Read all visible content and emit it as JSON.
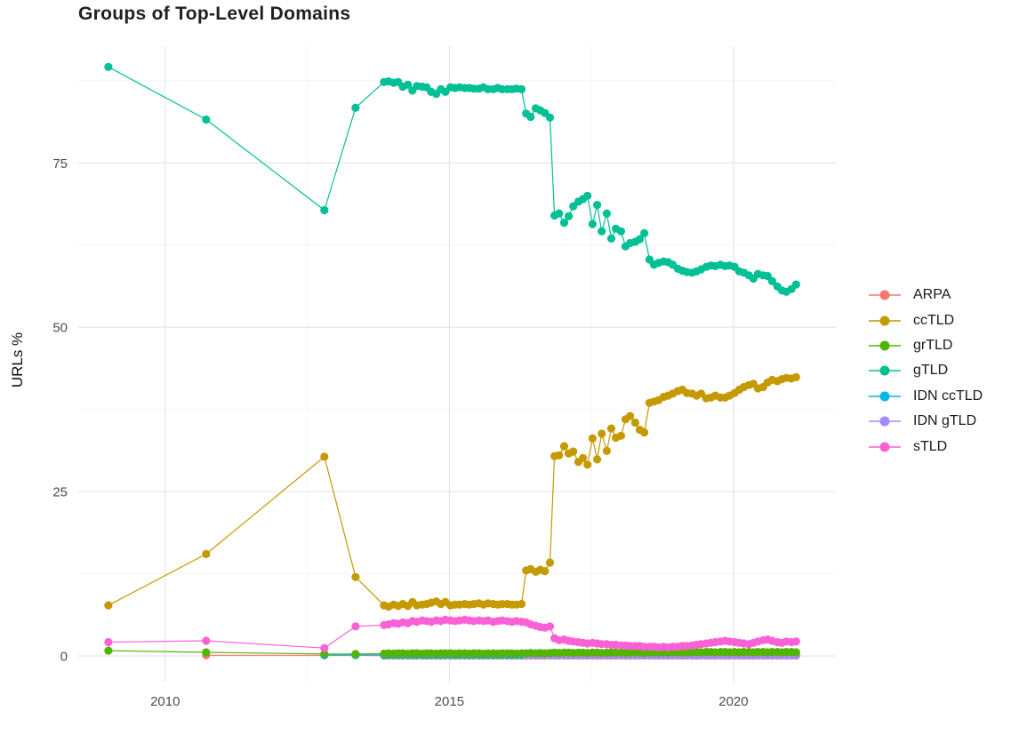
{
  "chart": {
    "title": "Groups of Top-Level Domains",
    "y_axis_title": "URLs %"
  },
  "chart_data": {
    "type": "line",
    "title": "Groups of Top-Level Domains",
    "xlabel": "",
    "ylabel": "URLs %",
    "legend_position": "right",
    "grid": true,
    "background": "#ffffff",
    "grid_major_color": "#e3e3e3",
    "grid_minor_color": "#efefef",
    "axis_text_color": "#4d4d4d",
    "xlim": [
      2008.47,
      2021.8
    ],
    "ylim": [
      -4.05,
      92.75
    ],
    "x_ticks": [
      2010,
      2015,
      2020
    ],
    "x_tick_labels": [
      "2010",
      "2015",
      "2020"
    ],
    "x_minor_ticks": [
      2012.5,
      2017.5
    ],
    "y_ticks": [
      0,
      25,
      50,
      75
    ],
    "y_tick_labels": [
      "0",
      "25",
      "50",
      "75"
    ],
    "y_minor_ticks": [
      12.5,
      37.5,
      62.5,
      87.5
    ],
    "x": [
      2009.0,
      2010.72,
      2012.8,
      2013.35,
      2013.85,
      2013.93,
      2014.02,
      2014.1,
      2014.18,
      2014.27,
      2014.35,
      2014.43,
      2014.52,
      2014.6,
      2014.68,
      2014.77,
      2014.85,
      2014.93,
      2015.02,
      2015.1,
      2015.18,
      2015.27,
      2015.35,
      2015.43,
      2015.52,
      2015.6,
      2015.68,
      2015.77,
      2015.85,
      2015.93,
      2016.02,
      2016.1,
      2016.18,
      2016.27,
      2016.35,
      2016.43,
      2016.52,
      2016.6,
      2016.68,
      2016.77,
      2016.85,
      2016.93,
      2017.02,
      2017.1,
      2017.18,
      2017.27,
      2017.35,
      2017.43,
      2017.52,
      2017.6,
      2017.68,
      2017.77,
      2017.85,
      2017.93,
      2018.02,
      2018.1,
      2018.18,
      2018.27,
      2018.35,
      2018.43,
      2018.52,
      2018.6,
      2018.68,
      2018.77,
      2018.85,
      2018.93,
      2019.02,
      2019.1,
      2019.18,
      2019.27,
      2019.35,
      2019.43,
      2019.52,
      2019.6,
      2019.68,
      2019.77,
      2019.85,
      2019.93,
      2020.02,
      2020.1,
      2020.18,
      2020.27,
      2020.35,
      2020.43,
      2020.52,
      2020.6,
      2020.68,
      2020.77,
      2020.85,
      2020.93,
      2021.02,
      2021.1
    ],
    "series": [
      {
        "name": "ARPA",
        "color": "#F8766D",
        "values": [
          null,
          0.1,
          0.1,
          0.1,
          0.05,
          0.05,
          0.05,
          0.05,
          0.05,
          0.05,
          0.05,
          0.05,
          0.05,
          0.05,
          0.05,
          0.05,
          0.05,
          0.05,
          0.05,
          0.05,
          0.05,
          0.05,
          0.05,
          0.05,
          0.05,
          0.05,
          0.05,
          0.05,
          0.05,
          0.05,
          0.05,
          0.05,
          0.05,
          0.05,
          0.05,
          0.05,
          0.05,
          0.05,
          0.05,
          0.05,
          0.05,
          0.05,
          0.05,
          0.05,
          0.05,
          0.05,
          0.05,
          0.05,
          0.05,
          0.05,
          0.05,
          0.05,
          0.05,
          0.05,
          0.05,
          0.05,
          0.05,
          0.05,
          0.05,
          0.05,
          0.05,
          0.05,
          0.05,
          0.05,
          0.05,
          0.05,
          0.05,
          0.05,
          0.05,
          0.05,
          0.05,
          0.05,
          0.05,
          0.05,
          0.05,
          0.05,
          0.05,
          0.05,
          0.05,
          0.05,
          0.05,
          0.05,
          0.05,
          0.05,
          0.05,
          0.05,
          0.05,
          0.05,
          0.05,
          0.05,
          0.05,
          0.05
        ]
      },
      {
        "name": "ccTLD",
        "color": "#C49A00",
        "values": [
          7.7,
          15.5,
          30.3,
          12.0,
          7.7,
          7.5,
          7.8,
          7.6,
          7.9,
          7.6,
          8.2,
          7.7,
          7.8,
          7.9,
          8.1,
          8.3,
          7.9,
          8.2,
          7.7,
          7.8,
          7.8,
          7.9,
          7.8,
          7.9,
          8.0,
          7.8,
          8.0,
          7.9,
          7.8,
          7.9,
          7.9,
          7.8,
          7.8,
          7.9,
          13.0,
          13.2,
          12.8,
          13.1,
          12.9,
          14.2,
          30.4,
          30.5,
          31.9,
          30.8,
          31.1,
          29.5,
          30.1,
          29.1,
          33.1,
          29.9,
          33.8,
          31.2,
          34.6,
          33.2,
          33.5,
          36.0,
          36.5,
          35.5,
          34.4,
          34.0,
          38.5,
          38.7,
          38.9,
          39.4,
          39.6,
          39.9,
          40.3,
          40.5,
          40.0,
          39.9,
          39.6,
          39.9,
          39.2,
          39.3,
          39.6,
          39.3,
          39.3,
          39.6,
          40.0,
          40.5,
          40.9,
          41.2,
          41.4,
          40.7,
          40.9,
          41.6,
          42.0,
          41.8,
          42.1,
          42.3,
          42.2,
          42.4
        ]
      },
      {
        "name": "grTLD",
        "color": "#53B400",
        "values": [
          0.8,
          0.55,
          0.3,
          0.3,
          0.35,
          0.4,
          0.35,
          0.4,
          0.4,
          0.35,
          0.4,
          0.4,
          0.35,
          0.4,
          0.4,
          0.35,
          0.4,
          0.4,
          0.4,
          0.35,
          0.4,
          0.4,
          0.35,
          0.4,
          0.4,
          0.35,
          0.4,
          0.4,
          0.35,
          0.4,
          0.4,
          0.4,
          0.35,
          0.4,
          0.4,
          0.45,
          0.4,
          0.45,
          0.4,
          0.45,
          0.5,
          0.45,
          0.5,
          0.5,
          0.45,
          0.5,
          0.5,
          0.45,
          0.5,
          0.5,
          0.45,
          0.5,
          0.5,
          0.5,
          0.5,
          0.45,
          0.5,
          0.5,
          0.5,
          0.45,
          0.5,
          0.5,
          0.5,
          0.55,
          0.5,
          0.55,
          0.55,
          0.5,
          0.55,
          0.55,
          0.6,
          0.55,
          0.6,
          0.6,
          0.55,
          0.6,
          0.6,
          0.55,
          0.6,
          0.55,
          0.6,
          0.6,
          0.55,
          0.6,
          0.6,
          0.55,
          0.6,
          0.6,
          0.55,
          0.6,
          0.6,
          0.55
        ]
      },
      {
        "name": "gTLD",
        "color": "#00C094",
        "values": [
          89.6,
          81.6,
          67.8,
          83.4,
          87.3,
          87.4,
          87.2,
          87.3,
          86.6,
          86.9,
          86.0,
          86.7,
          86.6,
          86.5,
          85.8,
          85.5,
          86.2,
          85.8,
          86.5,
          86.4,
          86.5,
          86.4,
          86.4,
          86.3,
          86.3,
          86.5,
          86.2,
          86.2,
          86.4,
          86.2,
          86.2,
          86.2,
          86.3,
          86.2,
          82.5,
          82.0,
          83.3,
          83.0,
          82.6,
          81.9,
          67.0,
          67.3,
          65.9,
          66.9,
          68.4,
          69.1,
          69.5,
          70.0,
          65.7,
          68.6,
          64.6,
          67.3,
          63.5,
          65.0,
          64.6,
          62.3,
          62.8,
          63.0,
          63.4,
          64.3,
          60.3,
          59.5,
          59.8,
          60.0,
          59.9,
          59.5,
          58.9,
          58.6,
          58.4,
          58.3,
          58.5,
          58.8,
          59.2,
          59.4,
          59.3,
          59.5,
          59.3,
          59.4,
          59.2,
          58.5,
          58.3,
          57.9,
          57.4,
          58.1,
          57.9,
          57.8,
          57.0,
          56.2,
          55.6,
          55.4,
          55.8,
          56.5
        ]
      },
      {
        "name": "IDN ccTLD",
        "color": "#00B6EB",
        "values": [
          null,
          null,
          0.1,
          0.15,
          0.15,
          0.15,
          0.15,
          0.15,
          0.15,
          0.15,
          0.15,
          0.15,
          0.15,
          0.15,
          0.15,
          0.15,
          0.15,
          0.15,
          0.15,
          0.15,
          0.15,
          0.15,
          0.15,
          0.15,
          0.15,
          0.15,
          0.15,
          0.15,
          0.15,
          0.15,
          0.15,
          0.15,
          0.15,
          0.15,
          0.15,
          0.15,
          0.15,
          0.15,
          0.15,
          0.15,
          0.15,
          0.15,
          0.15,
          0.15,
          0.15,
          0.15,
          0.15,
          0.15,
          0.15,
          0.15,
          0.15,
          0.15,
          0.15,
          0.15,
          0.15,
          0.15,
          0.15,
          0.15,
          0.15,
          0.15,
          0.15,
          0.15,
          0.15,
          0.15,
          0.15,
          0.15,
          0.15,
          0.15,
          0.15,
          0.15,
          0.15,
          0.15,
          0.15,
          0.15,
          0.15,
          0.15,
          0.15,
          0.15,
          0.15,
          0.15,
          0.15,
          0.15,
          0.15,
          0.15,
          0.15,
          0.15,
          0.15,
          0.15,
          0.15,
          0.15,
          0.15,
          0.15
        ]
      },
      {
        "name": "IDN gTLD",
        "color": "#A58AFF",
        "values": [
          null,
          null,
          null,
          null,
          null,
          null,
          null,
          null,
          null,
          null,
          null,
          null,
          null,
          null,
          null,
          null,
          null,
          null,
          null,
          null,
          null,
          null,
          null,
          null,
          null,
          null,
          null,
          null,
          null,
          null,
          null,
          null,
          null,
          null,
          0.1,
          0.1,
          0.1,
          0.1,
          0.1,
          0.1,
          0.1,
          0.1,
          0.1,
          0.1,
          0.1,
          0.1,
          0.1,
          0.1,
          0.1,
          0.1,
          0.1,
          0.1,
          0.1,
          0.1,
          0.1,
          0.1,
          0.1,
          0.1,
          0.1,
          0.1,
          0.1,
          0.1,
          0.1,
          0.1,
          0.1,
          0.1,
          0.1,
          0.1,
          0.1,
          0.1,
          0.1,
          0.1,
          0.1,
          0.1,
          0.1,
          0.1,
          0.1,
          0.1,
          0.1,
          0.1,
          0.1,
          0.1,
          0.1,
          0.1,
          0.1,
          0.1,
          0.1,
          0.1,
          0.1,
          0.1,
          0.1,
          0.1
        ]
      },
      {
        "name": "sTLD",
        "color": "#FB61D7",
        "values": [
          2.1,
          2.3,
          1.2,
          4.5,
          4.7,
          4.8,
          5.0,
          4.9,
          5.1,
          5.0,
          5.3,
          5.2,
          5.4,
          5.3,
          5.2,
          5.4,
          5.3,
          5.5,
          5.4,
          5.3,
          5.4,
          5.5,
          5.4,
          5.3,
          5.4,
          5.3,
          5.4,
          5.2,
          5.3,
          5.4,
          5.3,
          5.2,
          5.3,
          5.2,
          5.1,
          4.8,
          4.6,
          4.4,
          4.3,
          4.5,
          2.7,
          2.4,
          2.5,
          2.3,
          2.2,
          2.1,
          2.0,
          1.9,
          2.0,
          1.9,
          1.8,
          1.8,
          1.7,
          1.7,
          1.6,
          1.6,
          1.5,
          1.5,
          1.5,
          1.4,
          1.4,
          1.4,
          1.3,
          1.4,
          1.3,
          1.4,
          1.4,
          1.5,
          1.5,
          1.6,
          1.7,
          1.8,
          1.9,
          2.0,
          2.1,
          2.2,
          2.3,
          2.2,
          2.1,
          2.0,
          1.9,
          1.8,
          2.0,
          2.2,
          2.4,
          2.5,
          2.3,
          2.1,
          2.0,
          2.2,
          2.1,
          2.2
        ]
      }
    ]
  }
}
